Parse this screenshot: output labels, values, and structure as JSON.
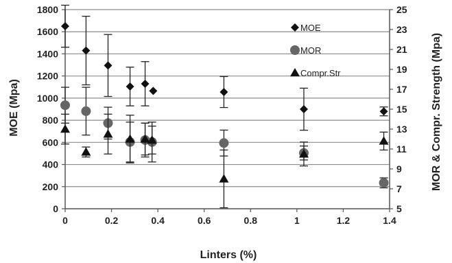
{
  "chart_data": {
    "type": "scatter",
    "xlabel": "Linters (%)",
    "ylabel_left": "MOE (Mpa)",
    "ylabel_right": "MOR & Compr. Strength (Mpa)",
    "xlim": [
      0,
      1.4
    ],
    "x_ticks": [
      "0",
      "0.2",
      "0.4",
      "0.6",
      "0.8",
      "1",
      "1.2",
      "1.4"
    ],
    "ylim_left": [
      0,
      1800
    ],
    "y_ticks_left": [
      "0",
      "200",
      "400",
      "600",
      "800",
      "1000",
      "1200",
      "1400",
      "1600",
      "1800"
    ],
    "ylim_right": [
      5,
      25
    ],
    "y_ticks_right": [
      "5",
      "7",
      "9",
      "11",
      "13",
      "15",
      "17",
      "19",
      "21",
      "23",
      "25"
    ],
    "grid": "horizontal",
    "legend_position": "top-right",
    "colors": {
      "moe": "#111111",
      "mor": "#666666",
      "compr": "#111111",
      "grid": "#8c8c8c"
    },
    "series": [
      {
        "name": "MOE",
        "marker": "diamond",
        "axis": "left",
        "x": [
          0,
          0.09,
          0.185,
          0.28,
          0.345,
          0.38,
          0.685,
          1.03,
          1.375
        ],
        "y": [
          1650,
          1430,
          1295,
          1105,
          1130,
          1065,
          1055,
          900,
          880
        ],
        "err": [
          190,
          310,
          280,
          175,
          200,
          0,
          140,
          190,
          40
        ]
      },
      {
        "name": "MOR",
        "marker": "circle",
        "axis": "right",
        "x": [
          0,
          0.09,
          0.185,
          0.28,
          0.345,
          0.375,
          0.685,
          1.03,
          1.375
        ],
        "y": [
          15.4,
          14.8,
          13.6,
          11.7,
          11.9,
          11.7,
          11.6,
          10.6,
          7.6
        ],
        "err": [
          1.8,
          2.4,
          1.6,
          2.0,
          1.7,
          2.0,
          1.3,
          0.7,
          0.5
        ]
      },
      {
        "name": "Compr.Str",
        "marker": "triangle",
        "axis": "right",
        "x": [
          0,
          0.09,
          0.185,
          0.28,
          0.345,
          0.375,
          0.685,
          1.03,
          1.375
        ],
        "y": [
          13.0,
          10.7,
          12.5,
          12.0,
          12.0,
          11.9,
          8.0,
          10.5,
          11.8
        ],
        "err": [
          1.5,
          0.5,
          2.0,
          2.4,
          1.6,
          1.4,
          2.9,
          1.2,
          0.9
        ]
      }
    ]
  }
}
